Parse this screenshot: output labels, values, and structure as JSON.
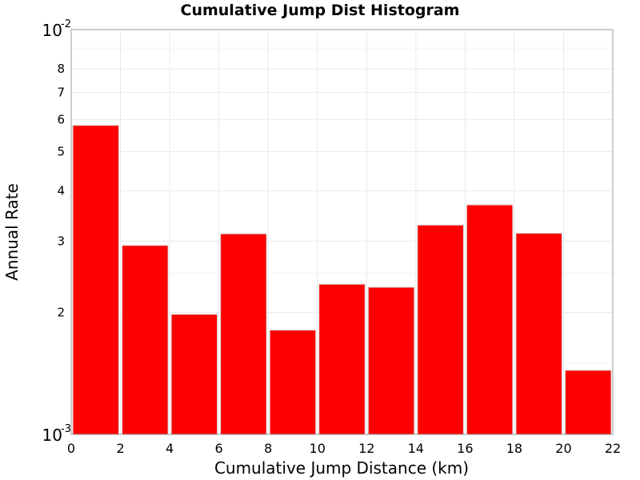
{
  "chart_data": {
    "type": "bar",
    "title": "Cumulative Jump Dist Histogram",
    "xlabel": "Cumulative Jump Distance (km)",
    "ylabel": "Annual Rate",
    "xlim": [
      0,
      22
    ],
    "ylim": [
      0.001,
      0.01
    ],
    "yscale": "log",
    "bar_color": "#ff0000",
    "grid": true,
    "legend": "none",
    "x_ticks": [
      "0",
      "2",
      "4",
      "6",
      "8",
      "10",
      "12",
      "14",
      "16",
      "18",
      "20",
      "22"
    ],
    "y_major_ticks": [
      {
        "value": 0.01,
        "base": "10",
        "exp": "-2"
      },
      {
        "value": 0.001,
        "base": "10",
        "exp": "-3"
      }
    ],
    "y_minor_ticks": [
      {
        "value": 0.002,
        "label": "2"
      },
      {
        "value": 0.003,
        "label": "3"
      },
      {
        "value": 0.004,
        "label": "4"
      },
      {
        "value": 0.005,
        "label": "5"
      },
      {
        "value": 0.006,
        "label": "6"
      },
      {
        "value": 0.007,
        "label": "7"
      },
      {
        "value": 0.008,
        "label": "8"
      }
    ],
    "bins": [
      {
        "x0": 0,
        "x1": 2,
        "value": 0.0058
      },
      {
        "x0": 2,
        "x1": 4,
        "value": 0.00293
      },
      {
        "x0": 4,
        "x1": 6,
        "value": 0.00198
      },
      {
        "x0": 6,
        "x1": 8,
        "value": 0.00313
      },
      {
        "x0": 8,
        "x1": 10,
        "value": 0.00181
      },
      {
        "x0": 10,
        "x1": 12,
        "value": 0.00235
      },
      {
        "x0": 12,
        "x1": 14,
        "value": 0.00231
      },
      {
        "x0": 14,
        "x1": 16,
        "value": 0.00329
      },
      {
        "x0": 16,
        "x1": 18,
        "value": 0.00369
      },
      {
        "x0": 18,
        "x1": 20,
        "value": 0.00314
      },
      {
        "x0": 20,
        "x1": 22,
        "value": 0.00144
      }
    ]
  }
}
